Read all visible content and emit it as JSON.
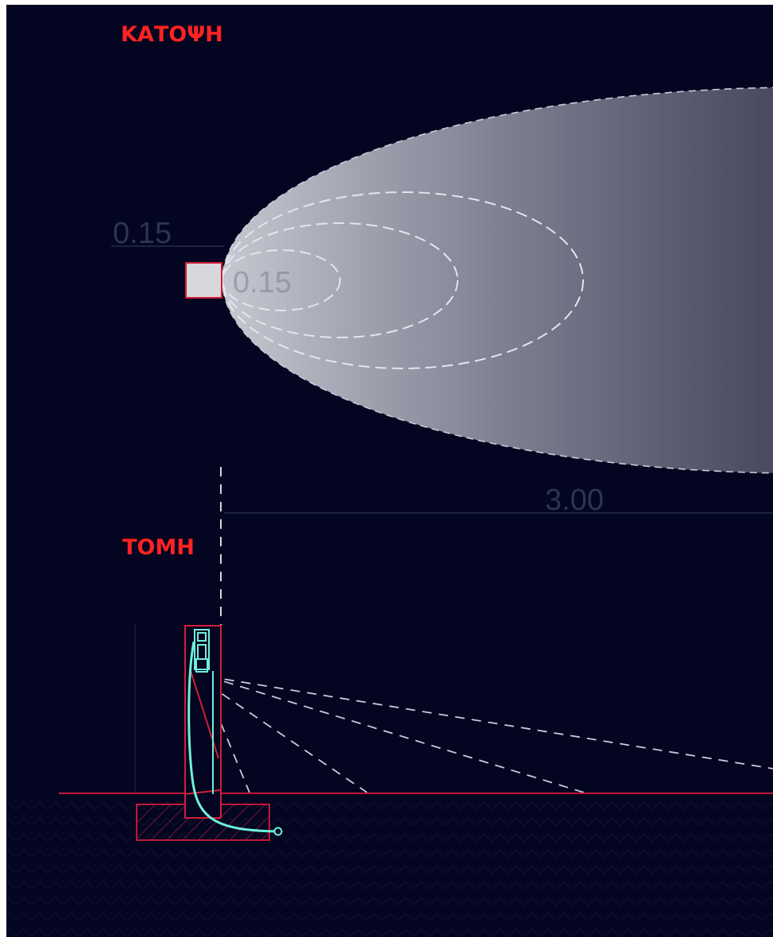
{
  "plan_label": "ΚΑΤΟΨΗ",
  "section_label": "ΤΟΜΗ",
  "dimensions": {
    "upper_offset": "0.15",
    "inner_offset": "0.15",
    "spread": "3.00"
  },
  "colors": {
    "background": "#040520",
    "label_red": "#ff2222",
    "fixture_outline": "#d0203a",
    "cyan": "#6ff0da",
    "dashed": "#c9cbd6",
    "dim_line": "#2d3353",
    "dim_text": "#3a4060"
  }
}
